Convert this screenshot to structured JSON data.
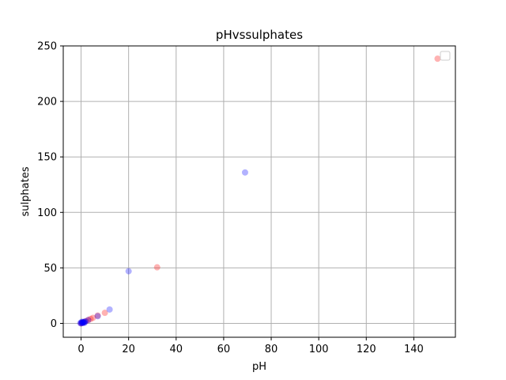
{
  "chart_data": {
    "type": "scatter",
    "title": "pHvssulphates",
    "xlabel": "pH",
    "ylabel": "sulphates",
    "xlim": [
      -7.5,
      157.5
    ],
    "ylim": [
      -12.5,
      250
    ],
    "xticks": [
      0,
      20,
      40,
      60,
      80,
      100,
      120,
      140
    ],
    "yticks": [
      0,
      50,
      100,
      150,
      200,
      250
    ],
    "grid": true,
    "legend": "top-right, empty",
    "series": [
      {
        "color": "#ff0000",
        "alpha": 0.3,
        "points": [
          [
            150,
            238.5
          ],
          [
            32,
            50.5
          ],
          [
            10,
            9.5
          ],
          [
            7,
            7
          ],
          [
            5,
            5
          ],
          [
            4,
            4
          ],
          [
            3,
            3
          ],
          [
            2,
            2
          ],
          [
            1,
            1
          ],
          [
            0.5,
            0.5
          ],
          [
            0,
            0
          ]
        ]
      },
      {
        "color": "#0000ff",
        "alpha": 0.3,
        "points": [
          [
            69,
            136
          ],
          [
            20,
            47
          ],
          [
            12,
            12.5
          ],
          [
            7,
            6.5
          ],
          [
            3,
            3
          ],
          [
            1.5,
            1.5
          ],
          [
            1,
            1
          ],
          [
            0.5,
            0.5
          ],
          [
            0,
            0
          ],
          [
            0.3,
            0.4
          ],
          [
            0.8,
            0.6
          ],
          [
            1.2,
            0.9
          ],
          [
            0.2,
            1.2
          ],
          [
            -0.3,
            0.3
          ],
          [
            1.8,
            1.7
          ],
          [
            0.6,
            1.4
          ],
          [
            1.4,
            0.4
          ]
        ]
      }
    ]
  }
}
